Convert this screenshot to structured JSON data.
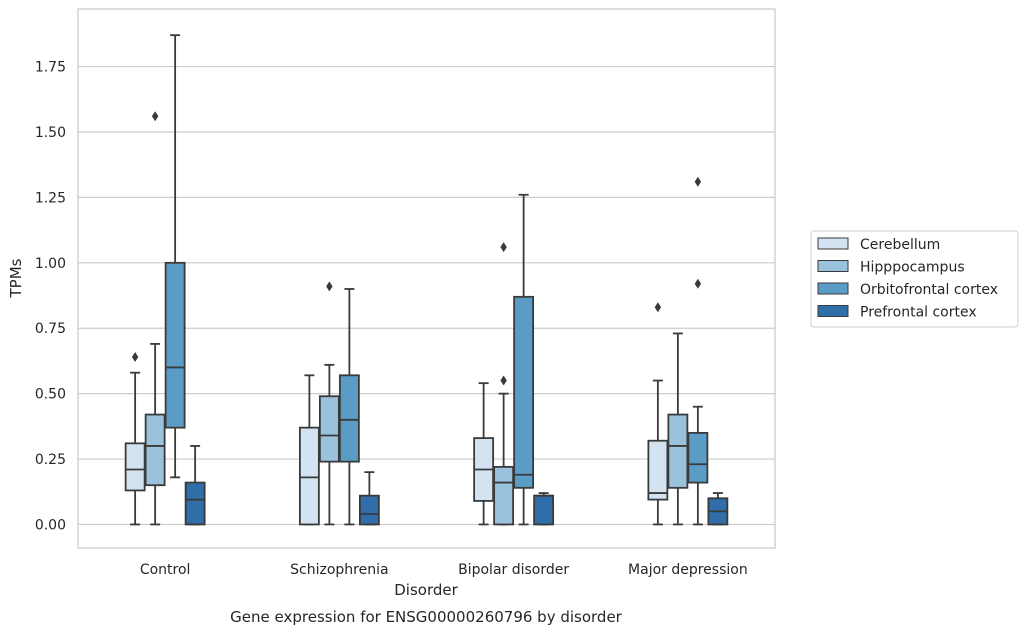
{
  "chart_data": {
    "type": "box",
    "caption": "Gene expression for ENSG00000260796 by disorder",
    "xlabel": "Disorder",
    "ylabel": "TPMs",
    "ylim": [
      -0.09,
      1.97
    ],
    "yticks": [
      "0.00",
      "0.25",
      "0.50",
      "0.75",
      "1.00",
      "1.25",
      "1.50",
      "1.75"
    ],
    "grid": true,
    "legend_position": "right",
    "categories": [
      "Control",
      "Schizophrenia",
      "Bipolar disorder",
      "Major depression"
    ],
    "series": [
      {
        "name": "Cerebellum",
        "color": "#d3e3f2",
        "boxes": [
          {
            "whisker_low": 0.0,
            "q1": 0.13,
            "median": 0.21,
            "q3": 0.31,
            "whisker_high": 0.58,
            "outliers": [
              0.64
            ]
          },
          {
            "whisker_low": 0.0,
            "q1": 0.0,
            "median": 0.18,
            "q3": 0.37,
            "whisker_high": 0.57,
            "outliers": []
          },
          {
            "whisker_low": 0.0,
            "q1": 0.09,
            "median": 0.21,
            "q3": 0.33,
            "whisker_high": 0.54,
            "outliers": []
          },
          {
            "whisker_low": 0.0,
            "q1": 0.095,
            "median": 0.12,
            "q3": 0.32,
            "whisker_high": 0.55,
            "outliers": [
              0.83
            ]
          }
        ]
      },
      {
        "name": "Hipppocampus",
        "color": "#9ac2dc",
        "boxes": [
          {
            "whisker_low": 0.0,
            "q1": 0.15,
            "median": 0.3,
            "q3": 0.42,
            "whisker_high": 0.69,
            "outliers": [
              1.56
            ]
          },
          {
            "whisker_low": 0.0,
            "q1": 0.24,
            "median": 0.34,
            "q3": 0.49,
            "whisker_high": 0.61,
            "outliers": [
              0.91
            ]
          },
          {
            "whisker_low": 0.0,
            "q1": 0.0,
            "median": 0.16,
            "q3": 0.22,
            "whisker_high": 0.5,
            "outliers": [
              0.55,
              1.06
            ]
          },
          {
            "whisker_low": 0.0,
            "q1": 0.14,
            "median": 0.3,
            "q3": 0.42,
            "whisker_high": 0.73,
            "outliers": []
          }
        ]
      },
      {
        "name": "Orbitofrontal cortex",
        "color": "#5a9cc6",
        "boxes": [
          {
            "whisker_low": 0.18,
            "q1": 0.37,
            "median": 0.6,
            "q3": 1.0,
            "whisker_high": 1.87,
            "outliers": []
          },
          {
            "whisker_low": 0.0,
            "q1": 0.24,
            "median": 0.4,
            "q3": 0.57,
            "whisker_high": 0.9,
            "outliers": []
          },
          {
            "whisker_low": 0.0,
            "q1": 0.14,
            "median": 0.19,
            "q3": 0.87,
            "whisker_high": 1.26,
            "outliers": []
          },
          {
            "whisker_low": 0.0,
            "q1": 0.16,
            "median": 0.23,
            "q3": 0.35,
            "whisker_high": 0.45,
            "outliers": [
              0.92,
              1.31
            ]
          }
        ]
      },
      {
        "name": "Prefrontal cortex",
        "color": "#2f6ea9",
        "boxes": [
          {
            "whisker_low": 0.0,
            "q1": 0.0,
            "median": 0.095,
            "q3": 0.16,
            "whisker_high": 0.3,
            "outliers": []
          },
          {
            "whisker_low": 0.0,
            "q1": 0.0,
            "median": 0.04,
            "q3": 0.11,
            "whisker_high": 0.2,
            "outliers": []
          },
          {
            "whisker_low": 0.0,
            "q1": 0.0,
            "median": 0.11,
            "q3": 0.11,
            "whisker_high": 0.12,
            "outliers": []
          },
          {
            "whisker_low": 0.0,
            "q1": 0.0,
            "median": 0.05,
            "q3": 0.1,
            "whisker_high": 0.12,
            "outliers": []
          }
        ]
      }
    ]
  }
}
